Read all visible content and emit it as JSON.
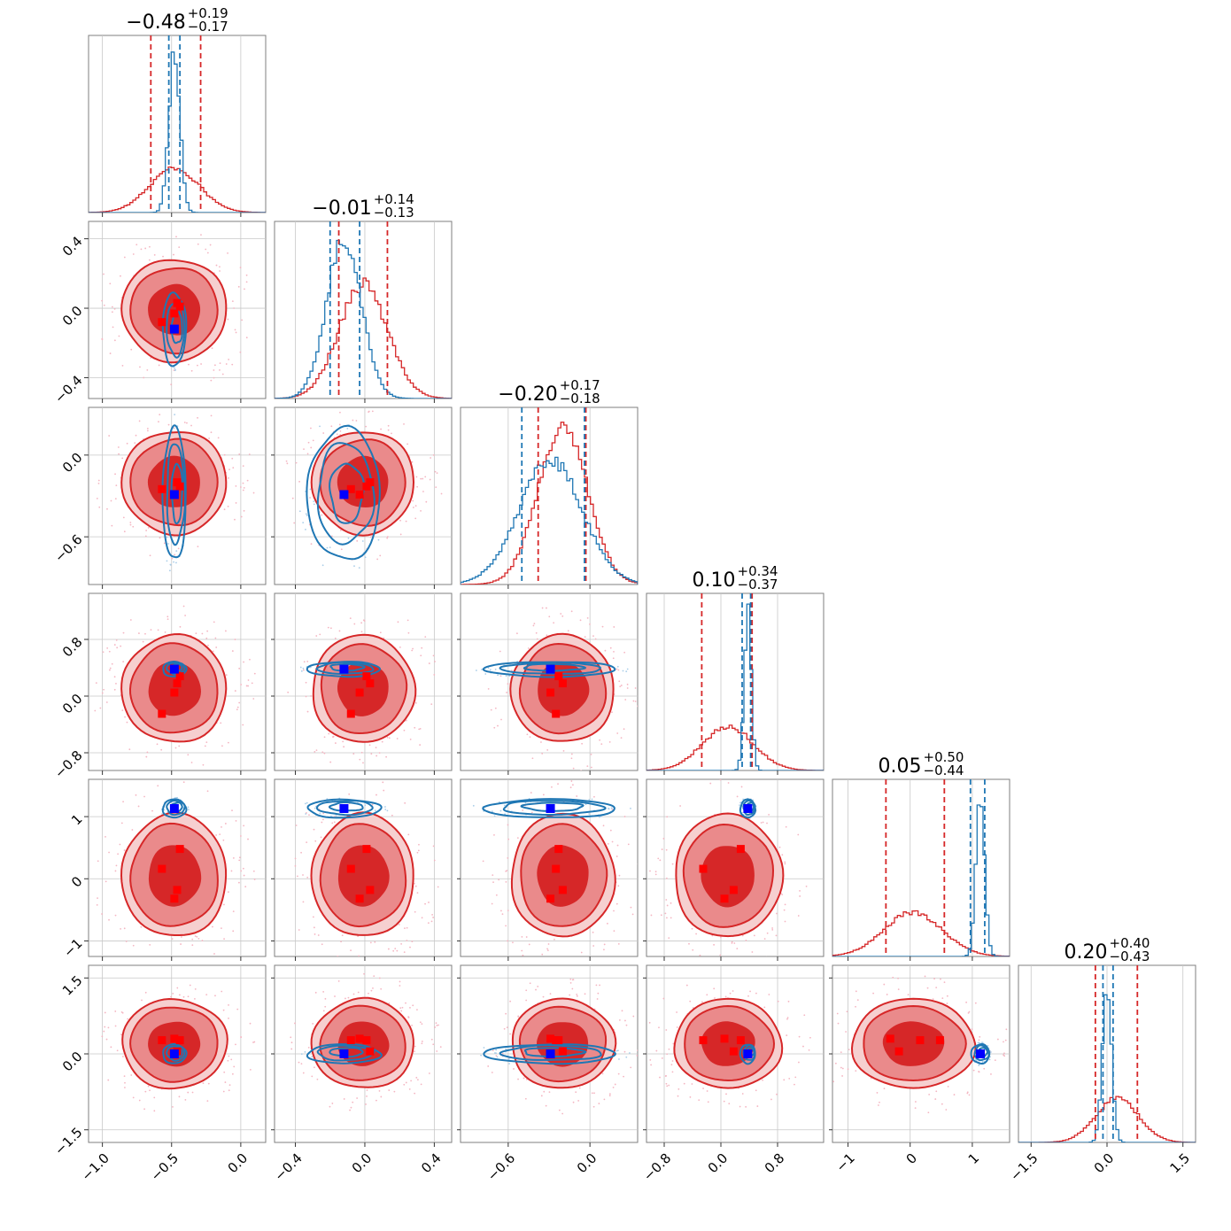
{
  "chart_data": {
    "type": "corner",
    "dimensions": 6,
    "colors": {
      "red": "#d62728",
      "red_mid": "#ea8a8b",
      "red_light": "#f6cfcf",
      "blue": "#1f77b4",
      "blue_marker": "#0000ff",
      "red_marker": "#ff0000"
    },
    "titles": [
      {
        "value": "−0.48",
        "plus": "+0.19",
        "minus": "−0.17"
      },
      {
        "value": "−0.01",
        "plus": "+0.14",
        "minus": "−0.13"
      },
      {
        "value": "−0.20",
        "plus": "+0.17",
        "minus": "−0.18"
      },
      {
        "value": "0.10",
        "plus": "+0.34",
        "minus": "−0.37"
      },
      {
        "value": "0.05",
        "plus": "+0.50",
        "minus": "−0.44"
      },
      {
        "value": "0.20",
        "plus": "+0.40",
        "minus": "−0.43"
      }
    ],
    "ranges": [
      [
        -1.1,
        0.18
      ],
      [
        -0.52,
        0.5
      ],
      [
        -0.95,
        0.35
      ],
      [
        -1.05,
        1.45
      ],
      [
        -1.25,
        1.6
      ],
      [
        -1.75,
        1.75
      ]
    ],
    "ticks": [
      {
        "values": [
          -1.0,
          -0.5,
          0.0
        ],
        "labels": [
          "−1.0",
          "−0.5",
          "0.0"
        ]
      },
      {
        "values": [
          -0.4,
          0.0,
          0.4
        ],
        "labels": [
          "−0.4",
          "0.0",
          "0.4"
        ]
      },
      {
        "values": [
          -0.6,
          0.0
        ],
        "labels": [
          "−0.6",
          "0.0"
        ]
      },
      {
        "values": [
          -0.8,
          0.0,
          0.8
        ],
        "labels": [
          "−0.8",
          "0.0",
          "0.8"
        ]
      },
      {
        "values": [
          -1,
          0,
          1
        ],
        "labels": [
          "−1",
          "0",
          "1"
        ]
      },
      {
        "values": [
          -1.5,
          0.0,
          1.5
        ],
        "labels": [
          "−1.5",
          "0.0",
          "1.5"
        ]
      }
    ],
    "y_ticks": [
      null,
      {
        "values": [
          0.4,
          0.0,
          -0.4
        ],
        "labels": [
          "0.4",
          "0.0",
          "−0.4"
        ]
      },
      {
        "values": [
          0.0,
          -0.6
        ],
        "labels": [
          "0.0",
          "−0.6"
        ]
      },
      {
        "values": [
          0.8,
          0.0,
          -0.8
        ],
        "labels": [
          "0.8",
          "0.0",
          "−0.8"
        ]
      },
      {
        "values": [
          1,
          0,
          -1
        ],
        "labels": [
          "1",
          "0",
          "−1"
        ]
      },
      {
        "values": [
          1.5,
          0.0,
          -1.5
        ],
        "labels": [
          "1.5",
          "0.0",
          "−1.5"
        ]
      }
    ],
    "red_dist": {
      "mean": [
        -0.48,
        -0.01,
        -0.2,
        0.1,
        0.05,
        0.2
      ],
      "sd": [
        0.18,
        0.14,
        0.18,
        0.36,
        0.47,
        0.42
      ],
      "q16": [
        -0.65,
        -0.15,
        -0.38,
        -0.27,
        -0.39,
        -0.23
      ],
      "q84": [
        -0.29,
        0.13,
        -0.03,
        0.44,
        0.55,
        0.6
      ]
    },
    "blue_dist": {
      "mean": [
        -0.48,
        -0.12,
        -0.29,
        0.38,
        1.13,
        0.0
      ],
      "sd": [
        0.04,
        0.1,
        0.23,
        0.05,
        0.07,
        0.09
      ],
      "q16": [
        -0.52,
        -0.2,
        -0.5,
        0.3,
        0.97,
        -0.08
      ],
      "q84": [
        -0.44,
        -0.03,
        -0.04,
        0.42,
        1.2,
        0.12
      ]
    },
    "blue_marker": [
      -0.48,
      -0.12,
      -0.29,
      0.38,
      1.13,
      0.0
    ],
    "red_markers": [
      [
        -0.57,
        -0.08,
        -0.25,
        -0.25,
        0.16,
        0.27
      ],
      [
        -0.48,
        -0.03,
        -0.29,
        0.05,
        -0.32,
        0.3
      ],
      [
        -0.44,
        0.01,
        -0.23,
        0.28,
        0.48,
        0.27
      ],
      [
        -0.46,
        0.03,
        -0.2,
        0.18,
        -0.18,
        0.05
      ]
    ]
  }
}
